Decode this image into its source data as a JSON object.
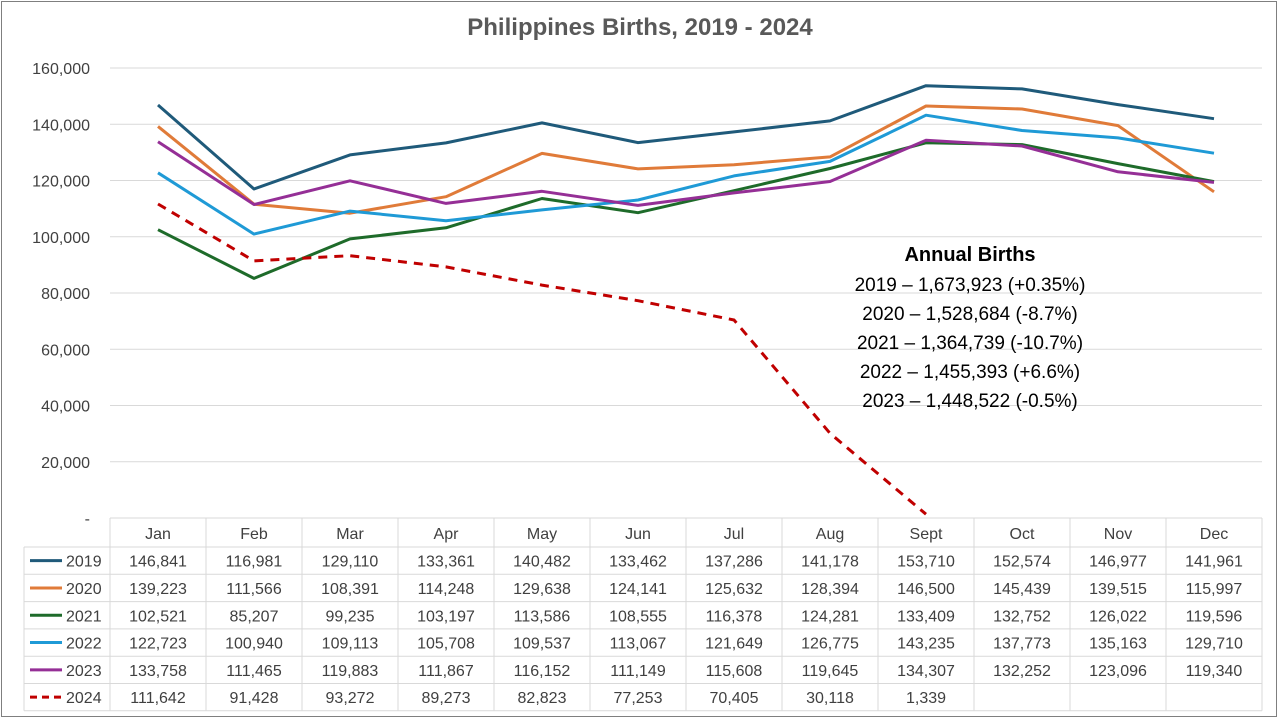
{
  "chart_data": {
    "type": "line",
    "title": "Philippines Births, 2019 - 2024",
    "categories": [
      "Jan",
      "Feb",
      "Mar",
      "Apr",
      "May",
      "Jun",
      "Jul",
      "Aug",
      "Sept",
      "Oct",
      "Nov",
      "Dec"
    ],
    "ylim": [
      0,
      160000
    ],
    "yticks": [
      "-",
      "20,000",
      "40,000",
      "60,000",
      "80,000",
      "100,000",
      "120,000",
      "140,000",
      "160,000"
    ],
    "grid": true,
    "legend": "data-table-left",
    "series": [
      {
        "name": "2019",
        "color": "#1f5a7a",
        "dash": false,
        "values": [
          146841,
          116981,
          129110,
          133361,
          140482,
          133462,
          137286,
          141178,
          153710,
          152574,
          146977,
          141961
        ],
        "labels": [
          "146,841",
          "116,981",
          "129,110",
          "133,361",
          "140,482",
          "133,462",
          "137,286",
          "141,178",
          "153,710",
          "152,574",
          "146,977",
          "141,961"
        ]
      },
      {
        "name": "2020",
        "color": "#e07b39",
        "dash": false,
        "values": [
          139223,
          111566,
          108391,
          114248,
          129638,
          124141,
          125632,
          128394,
          146500,
          145439,
          139515,
          115997
        ],
        "labels": [
          "139,223",
          "111,566",
          "108,391",
          "114,248",
          "129,638",
          "124,141",
          "125,632",
          "128,394",
          "146,500",
          "145,439",
          "139,515",
          "115,997"
        ]
      },
      {
        "name": "2021",
        "color": "#1e6b2a",
        "dash": false,
        "values": [
          102521,
          85207,
          99235,
          103197,
          113586,
          108555,
          116378,
          124281,
          133409,
          132752,
          126022,
          119596
        ],
        "labels": [
          "102,521",
          "85,207",
          "99,235",
          "103,197",
          "113,586",
          "108,555",
          "116,378",
          "124,281",
          "133,409",
          "132,752",
          "126,022",
          "119,596"
        ]
      },
      {
        "name": "2022",
        "color": "#1f9ad6",
        "dash": false,
        "values": [
          122723,
          100940,
          109113,
          105708,
          109537,
          113067,
          121649,
          126775,
          143235,
          137773,
          135163,
          129710
        ],
        "labels": [
          "122,723",
          "100,940",
          "109,113",
          "105,708",
          "109,537",
          "113,067",
          "121,649",
          "126,775",
          "143,235",
          "137,773",
          "135,163",
          "129,710"
        ]
      },
      {
        "name": "2023",
        "color": "#952f96",
        "dash": false,
        "values": [
          133758,
          111465,
          119883,
          111867,
          116152,
          111149,
          115608,
          119645,
          134307,
          132252,
          123096,
          119340
        ],
        "labels": [
          "133,758",
          "111,465",
          "119,883",
          "111,867",
          "116,152",
          "111,149",
          "115,608",
          "119,645",
          "134,307",
          "132,252",
          "123,096",
          "119,340"
        ]
      },
      {
        "name": "2024",
        "color": "#c00000",
        "dash": true,
        "values": [
          111642,
          91428,
          93272,
          89273,
          82823,
          77253,
          70405,
          30118,
          1339,
          null,
          null,
          null
        ],
        "labels": [
          "111,642",
          "91,428",
          "93,272",
          "89,273",
          "82,823",
          "77,253",
          "70,405",
          "30,118",
          "1,339",
          "",
          "",
          ""
        ]
      }
    ],
    "annotation": {
      "title": "Annual Births",
      "lines": [
        "2019 – 1,673,923 (+0.35%)",
        "2020 – 1,528,684 (-8.7%)",
        "2021 – 1,364,739 (-10.7%)",
        "2022 – 1,455,393 (+6.6%)",
        "2023 – 1,448,522 (-0.5%)"
      ]
    }
  }
}
